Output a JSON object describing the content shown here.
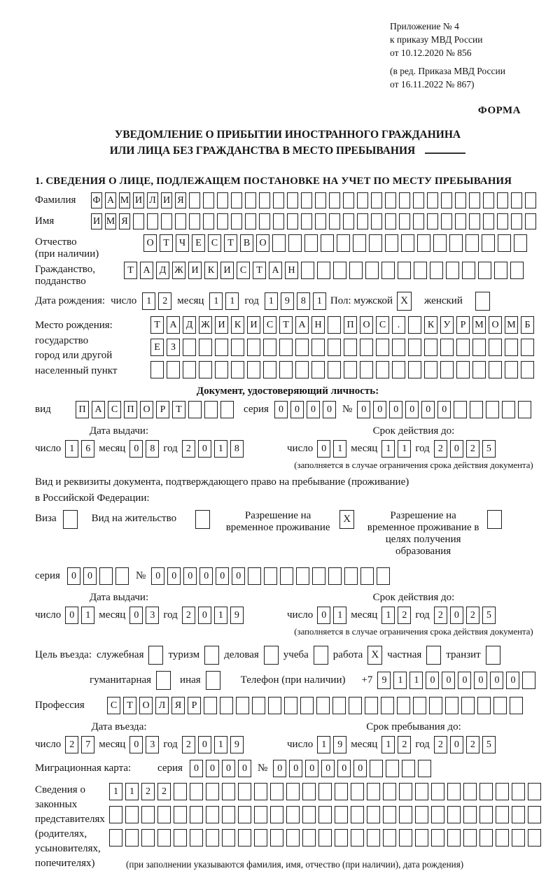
{
  "header": {
    "appendix": "Приложение № 4\nк приказу МВД России\nот 10.12.2020 № 856",
    "edition": "(в ред. Приказа МВД России\nот 16.11.2022 № 867)",
    "form_label": "ФОРМА"
  },
  "title": {
    "line1": "УВЕДОМЛЕНИЕ О ПРИБЫТИИ ИНОСТРАННОГО ГРАЖДАНИНА",
    "line2": "ИЛИ ЛИЦА БЕЗ ГРАЖДАНСТВА В МЕСТО ПРЕБЫВАНИЯ"
  },
  "section1_heading": "1. СВЕДЕНИЯ О ЛИЦЕ, ПОДЛЕЖАЩЕМ ПОСТАНОВКЕ НА УЧЕТ ПО МЕСТУ ПРЕБЫВАНИЯ",
  "lx": {
    "day": "число",
    "month": "месяц",
    "year": "год",
    "series": "серия",
    "no": "№",
    "kind": "вид",
    "issue_date": "Дата выдачи:",
    "valid_until": "Срок действия до:",
    "entry_date": "Дата въезда:",
    "stay_until": "Срок пребывания до:",
    "footnote": "(заполняется в случае ограничения срока действия документа)",
    "phone": "Телефон (при наличии)",
    "plus7": "+7"
  },
  "surname": {
    "label": "Фамилия",
    "boxes": {
      "value": "ФАМИЛИЯ",
      "cells": 32
    }
  },
  "firstname": {
    "label": "Имя",
    "boxes": {
      "value": "ИМЯ",
      "cells": 32
    }
  },
  "patronymic": {
    "label": "Отчество\n(при наличии)",
    "boxes": {
      "value": "ОТЧЕСТВО",
      "cells": 24
    }
  },
  "citizenship": {
    "label": "Гражданство,\nподданство",
    "boxes": {
      "value": "ТАДЖИКИСТАН",
      "cells": 25
    }
  },
  "birthdate": {
    "label": "Дата рождения:",
    "day": {
      "value": "12",
      "cells": 2
    },
    "month": {
      "value": "11",
      "cells": 2
    },
    "year": {
      "value": "1981",
      "cells": 4
    },
    "sex_label": "Пол: мужской",
    "male_checked": "X",
    "female_label": "женский",
    "female_checked": ""
  },
  "birthplace": {
    "label": "Место рождения:\nгосударство\nгород или другой\nнаселенный пункт",
    "row1": {
      "value": "ТАДЖИКИСТАН ПОС. КУРМОМБ",
      "cells": 24
    },
    "row2": {
      "value": "ЕЗ",
      "cells": 24
    },
    "row3": {
      "value": "",
      "cells": 24
    }
  },
  "identity_doc": {
    "heading": "Документ, удостоверяющий личность:",
    "kind": {
      "value": "ПАСПОРТ",
      "cells": 10
    },
    "series": {
      "value": "0000",
      "cells": 4
    },
    "number": {
      "value": "000000",
      "cells": 11
    },
    "issue": {
      "day": {
        "value": "16",
        "cells": 2
      },
      "month": {
        "value": "08",
        "cells": 2
      },
      "year": {
        "value": "2018",
        "cells": 4
      }
    },
    "valid": {
      "day": {
        "value": "01",
        "cells": 2
      },
      "month": {
        "value": "11",
        "cells": 2
      },
      "year": {
        "value": "2025",
        "cells": 4
      }
    }
  },
  "residence_doc": {
    "intro1": "Вид и реквизиты документа, подтверждающего право на пребывание (проживание)",
    "intro2": "в Российской Федерации:",
    "opt_visa": {
      "label": "Виза",
      "checked": ""
    },
    "opt_residence_permit": {
      "label": "Вид на жительство",
      "checked": ""
    },
    "opt_temp_residence": {
      "label": "Разрешение на временное проживание",
      "checked": "X"
    },
    "opt_temp_residence_edu": {
      "label": "Разрешение на временное проживание в целях получения образования",
      "checked": ""
    },
    "series": {
      "value": "00",
      "cells": 4
    },
    "number": {
      "value": "000000",
      "cells": 15
    },
    "issue": {
      "day": {
        "value": "01",
        "cells": 2
      },
      "month": {
        "value": "03",
        "cells": 2
      },
      "year": {
        "value": "2019",
        "cells": 4
      }
    },
    "valid": {
      "day": {
        "value": "01",
        "cells": 2
      },
      "month": {
        "value": "12",
        "cells": 2
      },
      "year": {
        "value": "2025",
        "cells": 4
      }
    }
  },
  "purpose": {
    "label": "Цель въезда:",
    "opts": [
      {
        "label": "служебная",
        "checked": ""
      },
      {
        "label": "туризм",
        "checked": ""
      },
      {
        "label": "деловая",
        "checked": ""
      },
      {
        "label": "учеба",
        "checked": ""
      },
      {
        "label": "работа",
        "checked": "X"
      },
      {
        "label": "частная",
        "checked": ""
      },
      {
        "label": "транзит",
        "checked": ""
      },
      {
        "label": "гуманитарная",
        "checked": ""
      },
      {
        "label": "иная",
        "checked": ""
      }
    ],
    "phone": {
      "value": "911000000",
      "cells": 10
    }
  },
  "profession": {
    "label": "Профессия",
    "boxes": {
      "value": "СТОЛЯР",
      "cells": 26
    }
  },
  "entry": {
    "date": {
      "day": {
        "value": "27",
        "cells": 2
      },
      "month": {
        "value": "03",
        "cells": 2
      },
      "year": {
        "value": "2019",
        "cells": 4
      }
    },
    "stay_until": {
      "day": {
        "value": "19",
        "cells": 2
      },
      "month": {
        "value": "12",
        "cells": 2
      },
      "year": {
        "value": "2025",
        "cells": 4
      }
    }
  },
  "migration_card": {
    "label": "Миграционная карта:",
    "series": {
      "value": "0000",
      "cells": 4
    },
    "number": {
      "value": "000000",
      "cells": 10
    }
  },
  "representatives": {
    "label": "Сведения о\nзаконных\nпредставителях\n(родителях,\nусыновителях,\nпопечителях)",
    "row1": {
      "value": "1122",
      "cells": 27
    },
    "row2": {
      "value": "",
      "cells": 27
    },
    "row3": {
      "value": "",
      "cells": 27
    },
    "caption": "(при заполнении указываются фамилия, имя, отчество (при наличии), дата рождения)"
  }
}
